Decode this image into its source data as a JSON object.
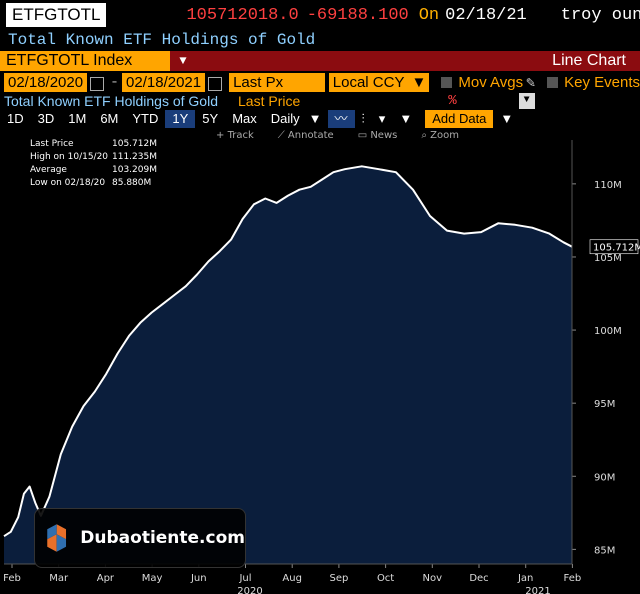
{
  "header": {
    "ticker": "ETFGTOTL",
    "price": "105712018.0",
    "change": "-69188.100",
    "on_label": "On",
    "date": "02/18/21",
    "unit": "troy ounce",
    "description": "Total Known ETF Holdings of Gold"
  },
  "titlebar": {
    "security": "ETFGTOTL Index",
    "chart_type": "Line Chart"
  },
  "controls": {
    "start_date": "02/18/2020",
    "end_date": "02/18/2021",
    "field": "Last Px",
    "currency": "Local CCY",
    "mov_avgs": "Mov Avgs",
    "key_events": "Key Events"
  },
  "subtitle": {
    "title": "Total Known ETF Holdings of Gold",
    "field": "Last Price",
    "pct": "%"
  },
  "toolbar": {
    "periods": [
      "1D",
      "3D",
      "1M",
      "6M",
      "YTD",
      "1Y",
      "5Y",
      "Max"
    ],
    "active_period": "1Y",
    "frequency": "Daily",
    "add_data": "Add Data"
  },
  "tools": {
    "track": "Track",
    "annotate": "Annotate",
    "news": "News",
    "zoom": "Zoom"
  },
  "legend": {
    "last_label": "Last Price",
    "last_value": "105.712M",
    "high_label": "High on 10/15/20",
    "high_value": "111.235M",
    "avg_label": "Average",
    "avg_value": "103.209M",
    "low_label": "Low on 02/18/20",
    "low_value": "85.880M"
  },
  "watermark": "Dubaotiente.com",
  "colors": {
    "area_fill": "#0b1e3c",
    "line": "#ffffff",
    "accent": "#ffa500",
    "titlebar": "#8b0c10"
  },
  "chart_data": {
    "type": "area",
    "title": "",
    "xlabel": "",
    "ylabel": "",
    "ylim": [
      84,
      113
    ],
    "y_ticks": [
      "85M",
      "90M",
      "95M",
      "100M",
      "105M",
      "110M"
    ],
    "y_tick_values": [
      85,
      90,
      95,
      100,
      105,
      110
    ],
    "x_ticks": [
      "Feb",
      "Mar",
      "Apr",
      "May",
      "Jun",
      "Jul",
      "Aug",
      "Sep",
      "Oct",
      "Nov",
      "Dec",
      "Jan",
      "Feb"
    ],
    "year_labels": [
      "2020",
      "2021"
    ],
    "last_value_label": "105.712M",
    "series": [
      {
        "values": [
          [
            0,
            85.9
          ],
          [
            0.12,
            86.2
          ],
          [
            0.25,
            87.2
          ],
          [
            0.35,
            88.8
          ],
          [
            0.45,
            89.3
          ],
          [
            0.55,
            88.2
          ],
          [
            0.65,
            87.3
          ],
          [
            0.8,
            88.6
          ],
          [
            1.0,
            91.5
          ],
          [
            1.2,
            93.4
          ],
          [
            1.4,
            94.8
          ],
          [
            1.6,
            95.8
          ],
          [
            1.8,
            97.0
          ],
          [
            2.0,
            98.4
          ],
          [
            2.2,
            99.6
          ],
          [
            2.4,
            100.5
          ],
          [
            2.6,
            101.2
          ],
          [
            2.8,
            101.8
          ],
          [
            3.0,
            102.4
          ],
          [
            3.2,
            103.0
          ],
          [
            3.4,
            103.8
          ],
          [
            3.6,
            104.7
          ],
          [
            3.8,
            105.4
          ],
          [
            4.0,
            106.2
          ],
          [
            4.2,
            107.6
          ],
          [
            4.4,
            108.6
          ],
          [
            4.6,
            109.0
          ],
          [
            4.8,
            108.7
          ],
          [
            5.0,
            109.2
          ],
          [
            5.2,
            109.6
          ],
          [
            5.4,
            109.8
          ],
          [
            5.6,
            110.3
          ],
          [
            5.8,
            110.8
          ],
          [
            6.0,
            111.0
          ],
          [
            6.3,
            111.2
          ],
          [
            6.6,
            111.0
          ],
          [
            6.9,
            110.8
          ],
          [
            7.2,
            109.6
          ],
          [
            7.5,
            107.8
          ],
          [
            7.8,
            106.8
          ],
          [
            8.1,
            106.6
          ],
          [
            8.4,
            106.7
          ],
          [
            8.7,
            107.3
          ],
          [
            9.0,
            107.2
          ],
          [
            9.3,
            107.0
          ],
          [
            9.6,
            106.6
          ],
          [
            9.85,
            106.0
          ],
          [
            10.0,
            105.7
          ]
        ]
      }
    ]
  }
}
